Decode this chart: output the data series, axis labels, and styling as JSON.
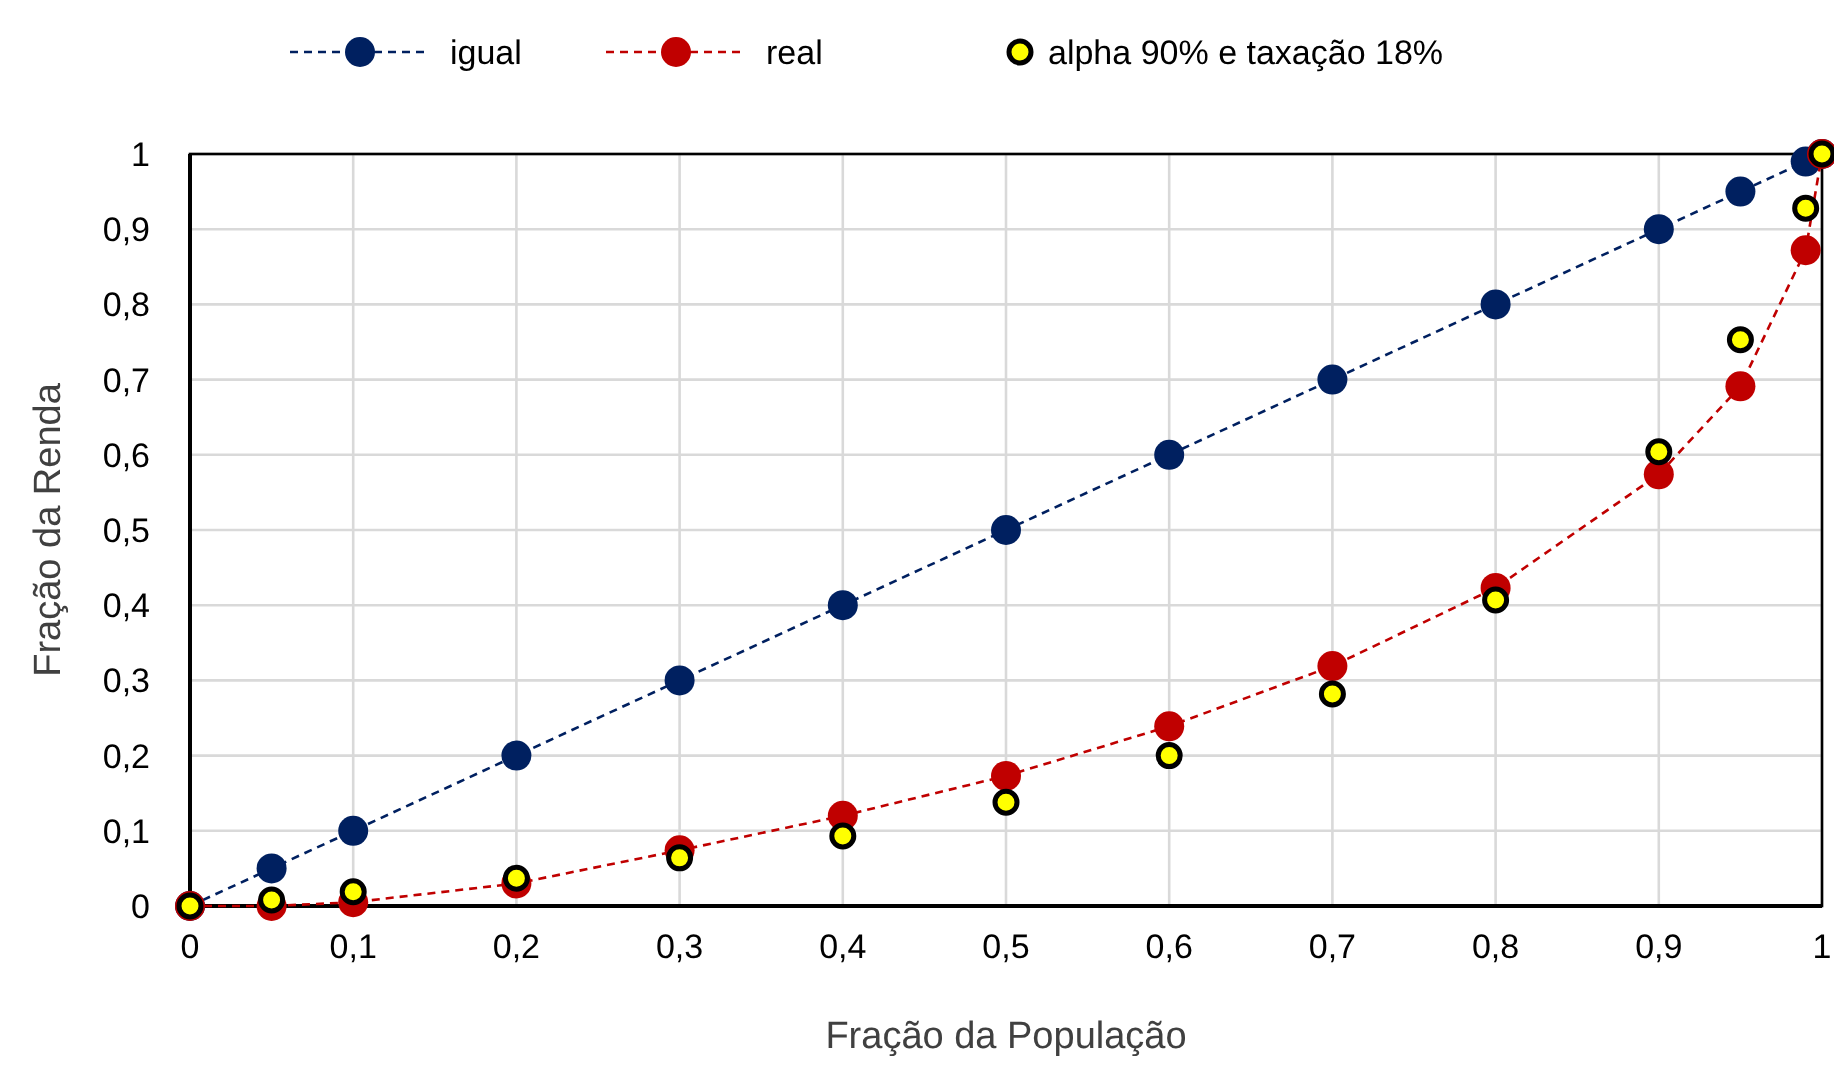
{
  "chart_data": {
    "type": "line",
    "xlabel": "Fração da População",
    "ylabel": "Fração da Renda",
    "x": [
      0,
      0.05,
      0.1,
      0.2,
      0.3,
      0.4,
      0.5,
      0.6,
      0.7,
      0.8,
      0.9,
      0.95,
      0.99,
      1
    ],
    "series": [
      {
        "name": "igual",
        "color": "#002060",
        "values": [
          0,
          0.05,
          0.1,
          0.2,
          0.3,
          0.4,
          0.5,
          0.6,
          0.7,
          0.8,
          0.9,
          0.95,
          0.99,
          1
        ]
      },
      {
        "name": "real",
        "color": "#c00000",
        "values": [
          0,
          0,
          0.005,
          0.03,
          0.074,
          0.12,
          0.173,
          0.239,
          0.319,
          0.423,
          0.574,
          0.691,
          0.872,
          1
        ]
      },
      {
        "name": "alpha 90% e taxação 18%",
        "type": "scatter",
        "color": "#ffff00",
        "values": [
          0,
          0.008,
          0.019,
          0.037,
          0.064,
          0.093,
          0.138,
          0.2,
          0.282,
          0.407,
          0.604,
          0.753,
          0.928,
          1
        ]
      }
    ],
    "xlim": [
      0,
      1
    ],
    "ylim": [
      0,
      1
    ],
    "xticks": [
      0,
      {
        "value": 0.1,
        "label": "0,1"
      },
      {
        "value": 0.2,
        "label": "0,2"
      },
      {
        "value": 0.3,
        "label": "0,3"
      },
      {
        "value": 0.4,
        "label": "0,4"
      },
      {
        "value": 0.5,
        "label": "0,5"
      },
      {
        "value": 0.6,
        "label": "0,6"
      },
      {
        "value": 0.7,
        "label": "0,7"
      },
      {
        "value": 0.8,
        "label": "0,8"
      },
      {
        "value": 0.9,
        "label": "0,9"
      },
      1
    ],
    "yticks": [
      0,
      {
        "value": 0.1,
        "label": "0,1"
      },
      {
        "value": 0.2,
        "label": "0,2"
      },
      {
        "value": 0.3,
        "label": "0,3"
      },
      {
        "value": 0.4,
        "label": "0,4"
      },
      {
        "value": 0.5,
        "label": "0,5"
      },
      {
        "value": 0.6,
        "label": "0,6"
      },
      {
        "value": 0.7,
        "label": "0,7"
      },
      {
        "value": 0.8,
        "label": "0,8"
      },
      {
        "value": 0.9,
        "label": "0,9"
      },
      1
    ],
    "grid": true,
    "legend": "top",
    "marker": "circle",
    "line_style": "dashed"
  }
}
